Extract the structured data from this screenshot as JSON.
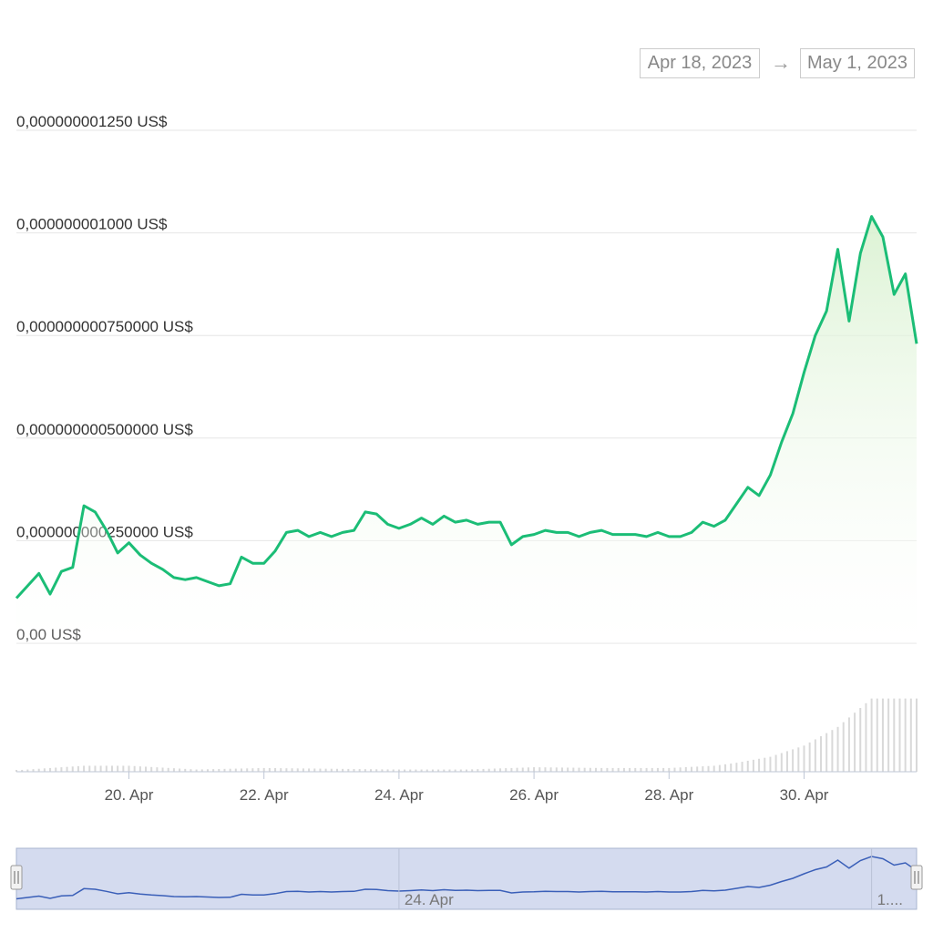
{
  "range_selector": {
    "from": "Apr 18, 2023",
    "arrow": "→",
    "to": "May 1, 2023"
  },
  "colors": {
    "price_line": "#1bbd76",
    "area_fill": "#e3f5dc",
    "volume_bar": "#d9d9d9",
    "navigator_line": "#3a5fb8",
    "navigator_fill": "#d4dbef"
  },
  "chart_data": {
    "type": "line",
    "y_ticks": [
      {
        "value": 0,
        "label": "0,00 US$"
      },
      {
        "value": 2.5e-10,
        "label": "0,000000000250000 US$"
      },
      {
        "value": 5e-10,
        "label": "0,000000000500000 US$"
      },
      {
        "value": 7.5e-10,
        "label": "0,000000000750000 US$"
      },
      {
        "value": 1e-09,
        "label": "0,000000001000 US$"
      },
      {
        "value": 1.25e-09,
        "label": "0,000000001250 US$"
      }
    ],
    "ylim": [
      0,
      1.25e-09
    ],
    "xlim": [
      "2023-04-18T08:00",
      "2023-05-01T16:00"
    ],
    "x_ticks": [
      {
        "date": "2023-04-20",
        "label": "20. Apr"
      },
      {
        "date": "2023-04-22",
        "label": "22. Apr"
      },
      {
        "date": "2023-04-24",
        "label": "24. Apr"
      },
      {
        "date": "2023-04-26",
        "label": "26. Apr"
      },
      {
        "date": "2023-04-28",
        "label": "28. Apr"
      },
      {
        "date": "2023-04-30",
        "label": "30. Apr"
      }
    ],
    "navigator_labels": [
      {
        "date": "2023-04-24",
        "label": "24. Apr"
      },
      {
        "date": "2023-05-01",
        "label": "1...."
      }
    ],
    "series": [
      {
        "values": [
          [
            "2023-04-18T08:00",
            1.1e-10
          ],
          [
            "2023-04-18T12:00",
            1.4e-10
          ],
          [
            "2023-04-18T16:00",
            1.7e-10
          ],
          [
            "2023-04-18T20:00",
            1.2e-10
          ],
          [
            "2023-04-19T00:00",
            1.75e-10
          ],
          [
            "2023-04-19T04:00",
            1.85e-10
          ],
          [
            "2023-04-19T08:00",
            3.35e-10
          ],
          [
            "2023-04-19T12:00",
            3.2e-10
          ],
          [
            "2023-04-19T16:00",
            2.75e-10
          ],
          [
            "2023-04-19T20:00",
            2.2e-10
          ],
          [
            "2023-04-20T00:00",
            2.45e-10
          ],
          [
            "2023-04-20T04:00",
            2.15e-10
          ],
          [
            "2023-04-20T08:00",
            1.95e-10
          ],
          [
            "2023-04-20T12:00",
            1.8e-10
          ],
          [
            "2023-04-20T16:00",
            1.6e-10
          ],
          [
            "2023-04-20T20:00",
            1.55e-10
          ],
          [
            "2023-04-21T00:00",
            1.6e-10
          ],
          [
            "2023-04-21T04:00",
            1.5e-10
          ],
          [
            "2023-04-21T08:00",
            1.4e-10
          ],
          [
            "2023-04-21T12:00",
            1.45e-10
          ],
          [
            "2023-04-21T16:00",
            2.1e-10
          ],
          [
            "2023-04-21T20:00",
            1.95e-10
          ],
          [
            "2023-04-22T00:00",
            1.95e-10
          ],
          [
            "2023-04-22T04:00",
            2.25e-10
          ],
          [
            "2023-04-22T08:00",
            2.7e-10
          ],
          [
            "2023-04-22T12:00",
            2.75e-10
          ],
          [
            "2023-04-22T16:00",
            2.6e-10
          ],
          [
            "2023-04-22T20:00",
            2.7e-10
          ],
          [
            "2023-04-23T00:00",
            2.6e-10
          ],
          [
            "2023-04-23T04:00",
            2.7e-10
          ],
          [
            "2023-04-23T08:00",
            2.75e-10
          ],
          [
            "2023-04-23T12:00",
            3.2e-10
          ],
          [
            "2023-04-23T16:00",
            3.15e-10
          ],
          [
            "2023-04-23T20:00",
            2.9e-10
          ],
          [
            "2023-04-24T00:00",
            2.8e-10
          ],
          [
            "2023-04-24T04:00",
            2.9e-10
          ],
          [
            "2023-04-24T08:00",
            3.05e-10
          ],
          [
            "2023-04-24T12:00",
            2.9e-10
          ],
          [
            "2023-04-24T16:00",
            3.1e-10
          ],
          [
            "2023-04-24T20:00",
            2.95e-10
          ],
          [
            "2023-04-25T00:00",
            3e-10
          ],
          [
            "2023-04-25T04:00",
            2.9e-10
          ],
          [
            "2023-04-25T08:00",
            2.95e-10
          ],
          [
            "2023-04-25T12:00",
            2.95e-10
          ],
          [
            "2023-04-25T16:00",
            2.4e-10
          ],
          [
            "2023-04-25T20:00",
            2.6e-10
          ],
          [
            "2023-04-26T00:00",
            2.65e-10
          ],
          [
            "2023-04-26T04:00",
            2.75e-10
          ],
          [
            "2023-04-26T08:00",
            2.7e-10
          ],
          [
            "2023-04-26T12:00",
            2.7e-10
          ],
          [
            "2023-04-26T16:00",
            2.6e-10
          ],
          [
            "2023-04-26T20:00",
            2.7e-10
          ],
          [
            "2023-04-27T00:00",
            2.75e-10
          ],
          [
            "2023-04-27T04:00",
            2.65e-10
          ],
          [
            "2023-04-27T08:00",
            2.65e-10
          ],
          [
            "2023-04-27T12:00",
            2.65e-10
          ],
          [
            "2023-04-27T16:00",
            2.6e-10
          ],
          [
            "2023-04-27T20:00",
            2.7e-10
          ],
          [
            "2023-04-28T00:00",
            2.6e-10
          ],
          [
            "2023-04-28T04:00",
            2.6e-10
          ],
          [
            "2023-04-28T08:00",
            2.7e-10
          ],
          [
            "2023-04-28T12:00",
            2.95e-10
          ],
          [
            "2023-04-28T16:00",
            2.85e-10
          ],
          [
            "2023-04-28T20:00",
            3e-10
          ],
          [
            "2023-04-29T00:00",
            3.4e-10
          ],
          [
            "2023-04-29T04:00",
            3.8e-10
          ],
          [
            "2023-04-29T08:00",
            3.6e-10
          ],
          [
            "2023-04-29T12:00",
            4.1e-10
          ],
          [
            "2023-04-29T16:00",
            4.9e-10
          ],
          [
            "2023-04-29T20:00",
            5.6e-10
          ],
          [
            "2023-04-30T00:00",
            6.6e-10
          ],
          [
            "2023-04-30T04:00",
            7.5e-10
          ],
          [
            "2023-04-30T08:00",
            8.1e-10
          ],
          [
            "2023-04-30T12:00",
            9.6e-10
          ],
          [
            "2023-04-30T16:00",
            7.85e-10
          ],
          [
            "2023-04-30T20:00",
            9.5e-10
          ],
          [
            "2023-05-01T00:00",
            1.04e-09
          ],
          [
            "2023-05-01T04:00",
            9.9e-10
          ],
          [
            "2023-05-01T08:00",
            8.5e-10
          ],
          [
            "2023-05-01T12:00",
            9e-10
          ],
          [
            "2023-05-01T16:00",
            7.3e-10
          ]
        ]
      }
    ],
    "volume_relative": [
      [
        "2023-04-18T08:00",
        0.02
      ],
      [
        "2023-04-19T08:00",
        0.08
      ],
      [
        "2023-04-20T00:00",
        0.08
      ],
      [
        "2023-04-21T00:00",
        0.03
      ],
      [
        "2023-04-22T00:00",
        0.05
      ],
      [
        "2023-04-23T00:00",
        0.04
      ],
      [
        "2023-04-24T00:00",
        0.03
      ],
      [
        "2023-04-25T00:00",
        0.03
      ],
      [
        "2023-04-26T00:00",
        0.06
      ],
      [
        "2023-04-27T00:00",
        0.05
      ],
      [
        "2023-04-28T00:00",
        0.05
      ],
      [
        "2023-04-28T16:00",
        0.08
      ],
      [
        "2023-04-29T00:00",
        0.12
      ],
      [
        "2023-04-29T12:00",
        0.2
      ],
      [
        "2023-04-30T00:00",
        0.35
      ],
      [
        "2023-04-30T12:00",
        0.6
      ],
      [
        "2023-05-01T00:00",
        0.98
      ],
      [
        "2023-05-01T16:00",
        0.98
      ]
    ]
  }
}
